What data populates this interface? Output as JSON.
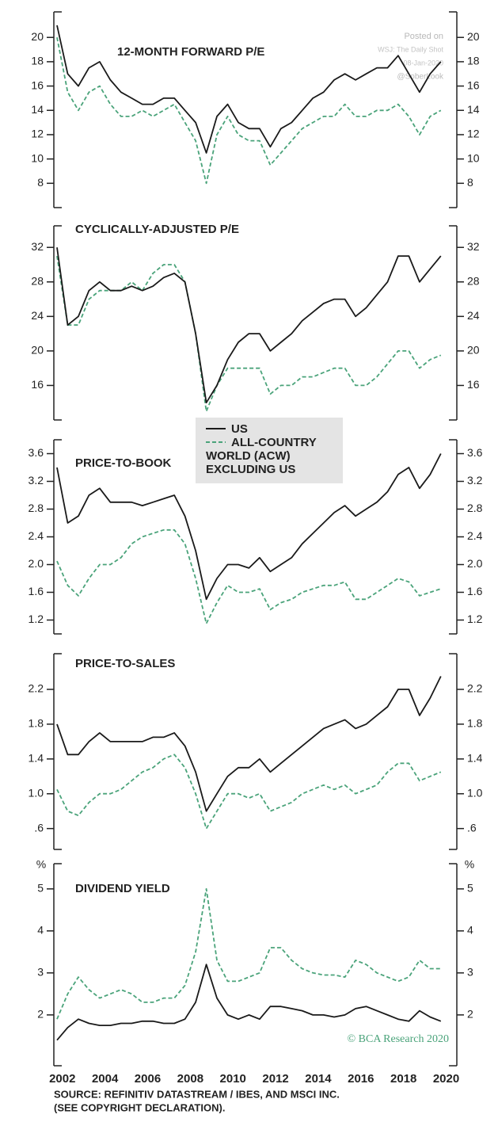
{
  "chart_data": [
    {
      "type": "line",
      "title": "12-MONTH FORWARD P/E",
      "x": [
        2001.75,
        2002.25,
        2002.75,
        2003.25,
        2003.75,
        2004.25,
        2004.75,
        2005.25,
        2005.75,
        2006.25,
        2006.75,
        2007.25,
        2007.75,
        2008.25,
        2008.75,
        2009.25,
        2009.75,
        2010.25,
        2010.75,
        2011.25,
        2011.75,
        2012.25,
        2012.75,
        2013.25,
        2013.75,
        2014.25,
        2014.75,
        2015.25,
        2015.75,
        2016.25,
        2016.75,
        2017.25,
        2017.75,
        2018.25,
        2018.75,
        2019.25,
        2019.75
      ],
      "xlim": [
        2001.6,
        2020.5
      ],
      "ylim": [
        6,
        22.1
      ],
      "yticks": [
        8,
        10,
        12,
        14,
        16,
        18,
        20
      ],
      "series": [
        {
          "name": "US",
          "color": "#1a1a1a",
          "line_style": "solid",
          "values": [
            21,
            17,
            16,
            17.5,
            18,
            16.5,
            15.5,
            15,
            14.5,
            14.5,
            15,
            15,
            14,
            13,
            10.5,
            13.5,
            14.5,
            13,
            12.5,
            12.5,
            11,
            12.5,
            13,
            14,
            15,
            15.5,
            16.5,
            17,
            16.5,
            17,
            17.5,
            17.5,
            18.5,
            17,
            15.5,
            17,
            18
          ]
        },
        {
          "name": "ALL-COUNTRY WORLD (ACW) EXCLUDING US",
          "color": "#4aa37a",
          "line_style": "dashed",
          "values": [
            20,
            15.5,
            14,
            15.5,
            16,
            14.5,
            13.5,
            13.5,
            14,
            13.5,
            14,
            14.5,
            13,
            11.5,
            8,
            12,
            13.5,
            12,
            11.5,
            11.5,
            9.5,
            10.5,
            11.5,
            12.5,
            13,
            13.5,
            13.5,
            14.5,
            13.5,
            13.5,
            14,
            14,
            14.5,
            13.5,
            12,
            13.5,
            14
          ]
        }
      ]
    },
    {
      "type": "line",
      "title": "CYCLICALLY-ADJUSTED P/E",
      "x": [
        2001.75,
        2002.25,
        2002.75,
        2003.25,
        2003.75,
        2004.25,
        2004.75,
        2005.25,
        2005.75,
        2006.25,
        2006.75,
        2007.25,
        2007.75,
        2008.25,
        2008.75,
        2009.25,
        2009.75,
        2010.25,
        2010.75,
        2011.25,
        2011.75,
        2012.25,
        2012.75,
        2013.25,
        2013.75,
        2014.25,
        2014.75,
        2015.25,
        2015.75,
        2016.25,
        2016.75,
        2017.25,
        2017.75,
        2018.25,
        2018.75,
        2019.25,
        2019.75
      ],
      "xlim": [
        2001.6,
        2020.5
      ],
      "ylim": [
        12,
        34.5
      ],
      "yticks": [
        16,
        20,
        24,
        28,
        32
      ],
      "series": [
        {
          "color": "#1a1a1a",
          "line_style": "solid",
          "values": [
            32,
            23,
            24,
            27,
            28,
            27,
            27,
            27.5,
            27,
            27.5,
            28.5,
            29,
            28,
            22,
            14,
            16,
            19,
            21,
            22,
            22,
            20,
            21,
            22,
            23.5,
            24.5,
            25.5,
            26,
            26,
            24,
            25,
            26.5,
            28,
            31,
            31,
            28,
            29.5,
            31
          ]
        },
        {
          "color": "#4aa37a",
          "line_style": "dashed",
          "values": [
            31,
            23,
            23,
            26,
            27,
            27,
            27,
            28,
            27,
            29,
            30,
            30,
            28,
            22,
            13,
            16,
            18,
            18,
            18,
            18,
            15,
            16,
            16,
            17,
            17,
            17.5,
            18,
            18,
            16,
            16,
            17,
            18.5,
            20,
            20,
            18,
            19,
            19.5
          ]
        }
      ]
    },
    {
      "type": "line",
      "title": "PRICE-TO-BOOK",
      "x": [
        2001.75,
        2002.25,
        2002.75,
        2003.25,
        2003.75,
        2004.25,
        2004.75,
        2005.25,
        2005.75,
        2006.25,
        2006.75,
        2007.25,
        2007.75,
        2008.25,
        2008.75,
        2009.25,
        2009.75,
        2010.25,
        2010.75,
        2011.25,
        2011.75,
        2012.25,
        2012.75,
        2013.25,
        2013.75,
        2014.25,
        2014.75,
        2015.25,
        2015.75,
        2016.25,
        2016.75,
        2017.25,
        2017.75,
        2018.25,
        2018.75,
        2019.25,
        2019.75
      ],
      "xlim": [
        2001.6,
        2020.5
      ],
      "ylim": [
        1.0,
        3.8
      ],
      "yticks": [
        1.2,
        1.6,
        {
          "value": 2,
          "label": "2.0"
        },
        2.4,
        2.8,
        3.2,
        3.6
      ],
      "series": [
        {
          "color": "#1a1a1a",
          "line_style": "solid",
          "values": [
            3.4,
            2.6,
            2.7,
            3.0,
            3.1,
            2.9,
            2.9,
            2.9,
            2.85,
            2.9,
            2.95,
            3.0,
            2.7,
            2.2,
            1.5,
            1.8,
            2.0,
            2.0,
            1.95,
            2.1,
            1.9,
            2.0,
            2.1,
            2.3,
            2.45,
            2.6,
            2.75,
            2.85,
            2.7,
            2.8,
            2.9,
            3.05,
            3.3,
            3.4,
            3.1,
            3.3,
            3.6
          ]
        },
        {
          "color": "#4aa37a",
          "line_style": "dashed",
          "values": [
            2.05,
            1.7,
            1.55,
            1.8,
            2.0,
            2.0,
            2.1,
            2.3,
            2.4,
            2.45,
            2.5,
            2.5,
            2.3,
            1.8,
            1.15,
            1.45,
            1.7,
            1.6,
            1.6,
            1.65,
            1.35,
            1.45,
            1.5,
            1.6,
            1.65,
            1.7,
            1.7,
            1.75,
            1.5,
            1.5,
            1.6,
            1.7,
            1.8,
            1.75,
            1.55,
            1.6,
            1.65
          ]
        }
      ]
    },
    {
      "type": "line",
      "title": "PRICE-TO-SALES",
      "x": [
        2001.75,
        2002.25,
        2002.75,
        2003.25,
        2003.75,
        2004.25,
        2004.75,
        2005.25,
        2005.75,
        2006.25,
        2006.75,
        2007.25,
        2007.75,
        2008.25,
        2008.75,
        2009.25,
        2009.75,
        2010.25,
        2010.75,
        2011.25,
        2011.75,
        2012.25,
        2012.75,
        2013.25,
        2013.75,
        2014.25,
        2014.75,
        2015.25,
        2015.75,
        2016.25,
        2016.75,
        2017.25,
        2017.75,
        2018.25,
        2018.75,
        2019.25,
        2019.75
      ],
      "xlim": [
        2001.6,
        2020.5
      ],
      "ylim": [
        0.36,
        2.61
      ],
      "yticks": [
        {
          "value": 0.6,
          "label": ".6"
        },
        {
          "value": 1,
          "label": "1.0"
        },
        1.4,
        1.8,
        2.2
      ],
      "series": [
        {
          "color": "#1a1a1a",
          "line_style": "solid",
          "values": [
            1.8,
            1.45,
            1.45,
            1.6,
            1.7,
            1.6,
            1.6,
            1.6,
            1.6,
            1.65,
            1.65,
            1.7,
            1.55,
            1.25,
            0.8,
            1.0,
            1.2,
            1.3,
            1.3,
            1.4,
            1.25,
            1.35,
            1.45,
            1.55,
            1.65,
            1.75,
            1.8,
            1.85,
            1.75,
            1.8,
            1.9,
            2.0,
            2.2,
            2.2,
            1.9,
            2.1,
            2.35
          ]
        },
        {
          "color": "#4aa37a",
          "line_style": "dashed",
          "values": [
            1.05,
            0.8,
            0.75,
            0.9,
            1.0,
            1.0,
            1.05,
            1.15,
            1.25,
            1.3,
            1.4,
            1.45,
            1.3,
            1.0,
            0.6,
            0.8,
            1.0,
            1.0,
            0.95,
            1.0,
            0.8,
            0.85,
            0.9,
            1.0,
            1.05,
            1.1,
            1.05,
            1.1,
            1.0,
            1.05,
            1.1,
            1.25,
            1.35,
            1.35,
            1.15,
            1.2,
            1.25
          ]
        }
      ]
    },
    {
      "type": "line",
      "title": "DIVIDEND YIELD",
      "unit": "%",
      "x": [
        2001.75,
        2002.25,
        2002.75,
        2003.25,
        2003.75,
        2004.25,
        2004.75,
        2005.25,
        2005.75,
        2006.25,
        2006.75,
        2007.25,
        2007.75,
        2008.25,
        2008.75,
        2009.25,
        2009.75,
        2010.25,
        2010.75,
        2011.25,
        2011.75,
        2012.25,
        2012.75,
        2013.25,
        2013.75,
        2014.25,
        2014.75,
        2015.25,
        2015.75,
        2016.25,
        2016.75,
        2017.25,
        2017.75,
        2018.25,
        2018.75,
        2019.25,
        2019.75
      ],
      "xlim": [
        2001.6,
        2020.5
      ],
      "ylim": [
        0.79,
        5.6
      ],
      "yticks": [
        2,
        3,
        4,
        5
      ],
      "xticks": [
        2002,
        2004,
        2006,
        2008,
        2010,
        2012,
        2014,
        2016,
        2018,
        2020
      ],
      "series": [
        {
          "color": "#1a1a1a",
          "line_style": "solid",
          "values": [
            1.4,
            1.7,
            1.9,
            1.8,
            1.75,
            1.75,
            1.8,
            1.8,
            1.85,
            1.85,
            1.8,
            1.8,
            1.9,
            2.3,
            3.2,
            2.4,
            2.0,
            1.9,
            2.0,
            1.9,
            2.2,
            2.2,
            2.15,
            2.1,
            2.0,
            2.0,
            1.95,
            2.0,
            2.15,
            2.2,
            2.1,
            2.0,
            1.9,
            1.85,
            2.1,
            1.95,
            1.85
          ]
        },
        {
          "color": "#4aa37a",
          "line_style": "dashed",
          "values": [
            1.9,
            2.5,
            2.9,
            2.6,
            2.4,
            2.5,
            2.6,
            2.5,
            2.3,
            2.3,
            2.4,
            2.4,
            2.7,
            3.5,
            5.0,
            3.3,
            2.8,
            2.8,
            2.9,
            3.0,
            3.6,
            3.6,
            3.3,
            3.1,
            3.0,
            2.95,
            2.95,
            2.9,
            3.3,
            3.2,
            3.0,
            2.9,
            2.8,
            2.9,
            3.3,
            3.1,
            3.1
          ]
        }
      ]
    }
  ],
  "watermark": [
    "Posted on",
    "WSJ: The Daily Shot",
    "08-Jan-2020",
    "@SoberLook"
  ],
  "copyright": "© BCA Research 2020",
  "source": [
    "SOURCE: REFINITIV DATASTREAM / IBES, AND MSCI INC.",
    "(SEE COPYRIGHT DECLARATION)."
  ]
}
